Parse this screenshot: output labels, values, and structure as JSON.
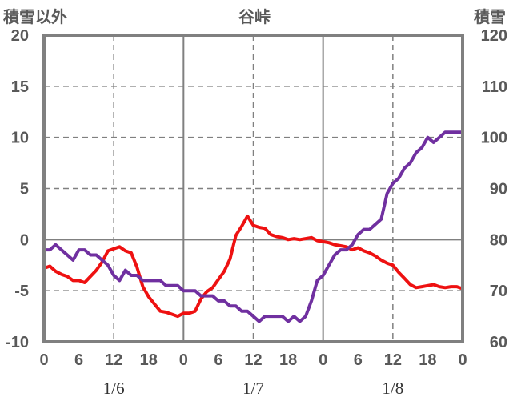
{
  "chart_data": {
    "type": "line",
    "title": "谷峠",
    "left_axis_title": "積雪以外",
    "right_axis_title": "積雪",
    "left_ylim": [
      -10,
      20
    ],
    "left_ticks": [
      20,
      15,
      10,
      5,
      0,
      -5,
      -10
    ],
    "left_tick_labels": [
      "20",
      "15",
      "10",
      "5",
      "0",
      "-5",
      "-10"
    ],
    "right_ylim": [
      60,
      120
    ],
    "right_ticks": [
      120,
      110,
      100,
      90,
      80,
      70,
      60
    ],
    "right_tick_labels": [
      "120",
      "110",
      "100",
      "90",
      "80",
      "70",
      "60"
    ],
    "x_range": [
      0,
      72
    ],
    "x_ticks": [
      0,
      6,
      12,
      18,
      24,
      30,
      36,
      42,
      48,
      54,
      60,
      66,
      72
    ],
    "x_tick_labels": [
      "0",
      "6",
      "12",
      "18",
      "0",
      "6",
      "12",
      "18",
      "0",
      "6",
      "12",
      "18",
      "0"
    ],
    "day_labels": [
      {
        "x": 12,
        "text": "1/6"
      },
      {
        "x": 36,
        "text": "1/7"
      },
      {
        "x": 60,
        "text": "1/8"
      }
    ],
    "grid": {
      "dashed_x": [
        12,
        36,
        60
      ],
      "solid_x": [
        24,
        48
      ],
      "dashed_y": [
        15,
        10,
        5,
        -5
      ],
      "zero_line": 0
    },
    "series": [
      {
        "color": "#ee1111",
        "axis": "left",
        "x": [
          0,
          1,
          2,
          3,
          4,
          5,
          6,
          7,
          8,
          9,
          10,
          11,
          12,
          13,
          14,
          15,
          16,
          17,
          18,
          19,
          20,
          21,
          22,
          23,
          24,
          25,
          26,
          27,
          28,
          29,
          30,
          31,
          32,
          33,
          34,
          35,
          36,
          37,
          38,
          39,
          40,
          41,
          42,
          43,
          44,
          45,
          46,
          47,
          48,
          49,
          50,
          51,
          52,
          53,
          54,
          55,
          56,
          57,
          58,
          59,
          60,
          61,
          62,
          63,
          64,
          65,
          66,
          67,
          68,
          69,
          70,
          71,
          72
        ],
        "values": [
          -2.8,
          -2.6,
          -3.1,
          -3.4,
          -3.6,
          -4.0,
          -4.0,
          -4.2,
          -3.6,
          -3.0,
          -2.2,
          -1.1,
          -0.9,
          -0.7,
          -1.1,
          -1.3,
          -2.7,
          -4.6,
          -5.6,
          -6.3,
          -7.0,
          -7.1,
          -7.3,
          -7.5,
          -7.2,
          -7.2,
          -7.0,
          -5.8,
          -5.1,
          -4.7,
          -3.9,
          -3.1,
          -1.9,
          0.4,
          1.3,
          2.3,
          1.4,
          1.2,
          1.1,
          0.5,
          0.3,
          0.2,
          0.0,
          0.1,
          0.0,
          0.1,
          0.2,
          -0.1,
          -0.2,
          -0.3,
          -0.5,
          -0.6,
          -0.7,
          -1.0,
          -0.8,
          -1.1,
          -1.3,
          -1.6,
          -2.0,
          -2.3,
          -2.5,
          -3.2,
          -3.8,
          -4.4,
          -4.7,
          -4.6,
          -4.5,
          -4.4,
          -4.6,
          -4.7,
          -4.6,
          -4.6,
          -4.8
        ]
      },
      {
        "color": "#7030a0",
        "axis": "right",
        "x": [
          0,
          1,
          2,
          3,
          4,
          5,
          6,
          7,
          8,
          9,
          10,
          11,
          12,
          13,
          14,
          15,
          16,
          17,
          18,
          19,
          20,
          21,
          22,
          23,
          24,
          25,
          26,
          27,
          28,
          29,
          30,
          31,
          32,
          33,
          34,
          35,
          36,
          37,
          38,
          39,
          40,
          41,
          42,
          43,
          44,
          45,
          46,
          47,
          48,
          49,
          50,
          51,
          52,
          53,
          54,
          55,
          56,
          57,
          58,
          59,
          60,
          61,
          62,
          63,
          64,
          65,
          66,
          67,
          68,
          69,
          70,
          71,
          72
        ],
        "values": [
          78,
          78,
          79,
          78,
          77,
          76,
          78,
          78,
          77,
          77,
          76,
          75,
          73,
          72,
          74,
          73,
          73,
          72,
          72,
          72,
          72,
          71,
          71,
          71,
          70,
          70,
          70,
          69,
          69,
          69,
          68,
          68,
          67,
          67,
          66,
          66,
          65,
          64,
          65,
          65,
          65,
          65,
          64,
          65,
          64,
          65,
          68,
          72,
          73,
          75,
          77,
          78,
          78,
          79,
          81,
          82,
          82,
          83,
          84,
          89,
          91,
          92,
          94,
          95,
          97,
          98,
          100,
          99,
          100,
          101,
          101,
          101,
          101
        ]
      }
    ]
  }
}
